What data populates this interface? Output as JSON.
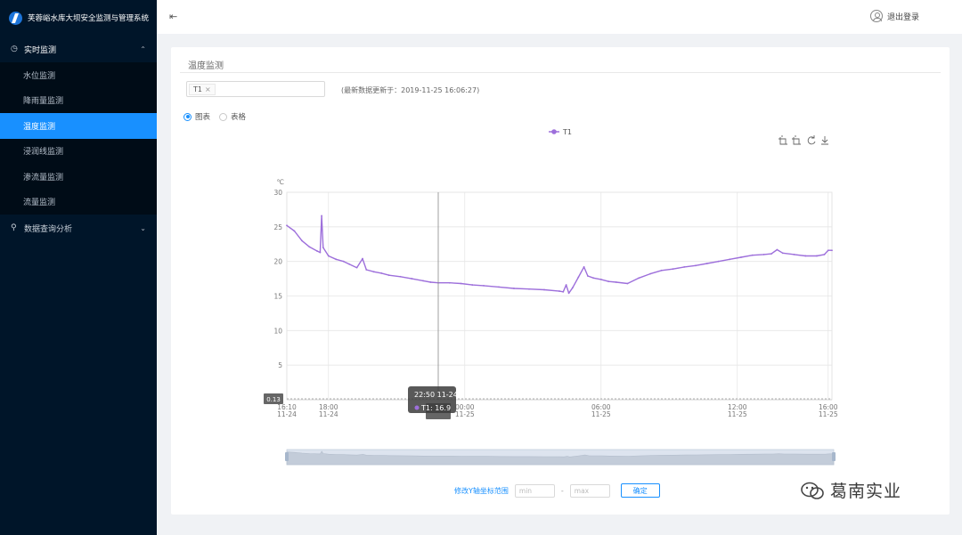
{
  "app": {
    "title": "芙蓉峪水库大坝安全监测与管理系统"
  },
  "sidebar": {
    "groups": [
      {
        "label": "实时监测",
        "icon": "clock-icon",
        "expanded": true,
        "items": [
          {
            "label": "水位监测",
            "active": false
          },
          {
            "label": "降雨量监测",
            "active": false
          },
          {
            "label": "温度监测",
            "active": true
          },
          {
            "label": "浸润线监测",
            "active": false
          },
          {
            "label": "渗流量监测",
            "active": false
          },
          {
            "label": "流量监测",
            "active": false
          }
        ]
      },
      {
        "label": "数据查询分析",
        "icon": "search-icon",
        "expanded": false,
        "items": []
      }
    ]
  },
  "header": {
    "logout_label": "退出登录"
  },
  "panel": {
    "title": "温度监测",
    "selected_sensors": [
      "T1"
    ],
    "update_text": "(最新数据更新于：2019-11-25 16:06:27)",
    "view_options": [
      {
        "label": "图表",
        "checked": true
      },
      {
        "label": "表格",
        "checked": false
      }
    ]
  },
  "chart_data": {
    "type": "line",
    "title": "",
    "ylabel": "℃",
    "xlabel": "",
    "ylim": [
      0,
      30
    ],
    "yticks": [
      0,
      5,
      10,
      15,
      20,
      25,
      30
    ],
    "x_range_minutes": [
      0,
      1440
    ],
    "x_ticks": [
      {
        "t": 0,
        "line1": "16:10",
        "line2": "11-24"
      },
      {
        "t": 110,
        "line1": "18:00",
        "line2": "11-24"
      },
      {
        "t": 470,
        "line1": "00:00",
        "line2": "11-25"
      },
      {
        "t": 830,
        "line1": "06:00",
        "line2": "11-25"
      },
      {
        "t": 1190,
        "line1": "12:00",
        "line2": "11-25"
      },
      {
        "t": 1430,
        "line1": "16:00",
        "line2": "11-25"
      }
    ],
    "legend": [
      "T1"
    ],
    "legend_position": "top-center",
    "series": [
      {
        "name": "T1",
        "color": "#9d6fdb",
        "points": [
          [
            0,
            25.2
          ],
          [
            20,
            24.4
          ],
          [
            40,
            23.0
          ],
          [
            60,
            22.1
          ],
          [
            80,
            21.5
          ],
          [
            88,
            21.3
          ],
          [
            92,
            26.6
          ],
          [
            96,
            22.0
          ],
          [
            110,
            20.8
          ],
          [
            130,
            20.3
          ],
          [
            150,
            20.0
          ],
          [
            165,
            19.6
          ],
          [
            185,
            19.1
          ],
          [
            200,
            20.4
          ],
          [
            210,
            18.8
          ],
          [
            230,
            18.5
          ],
          [
            250,
            18.3
          ],
          [
            270,
            18.0
          ],
          [
            300,
            17.8
          ],
          [
            330,
            17.5
          ],
          [
            360,
            17.2
          ],
          [
            380,
            17.0
          ],
          [
            400,
            16.9
          ],
          [
            430,
            16.9
          ],
          [
            460,
            16.8
          ],
          [
            490,
            16.6
          ],
          [
            520,
            16.5
          ],
          [
            560,
            16.3
          ],
          [
            600,
            16.1
          ],
          [
            640,
            16.0
          ],
          [
            680,
            15.9
          ],
          [
            720,
            15.7
          ],
          [
            730,
            15.6
          ],
          [
            738,
            16.6
          ],
          [
            745,
            15.4
          ],
          [
            755,
            16.2
          ],
          [
            770,
            17.7
          ],
          [
            785,
            19.2
          ],
          [
            795,
            17.9
          ],
          [
            810,
            17.6
          ],
          [
            830,
            17.4
          ],
          [
            850,
            17.1
          ],
          [
            870,
            17.0
          ],
          [
            900,
            16.8
          ],
          [
            930,
            17.6
          ],
          [
            960,
            18.2
          ],
          [
            990,
            18.7
          ],
          [
            1020,
            18.9
          ],
          [
            1050,
            19.2
          ],
          [
            1080,
            19.4
          ],
          [
            1110,
            19.7
          ],
          [
            1140,
            20.0
          ],
          [
            1170,
            20.3
          ],
          [
            1200,
            20.6
          ],
          [
            1230,
            20.9
          ],
          [
            1260,
            21.0
          ],
          [
            1280,
            21.1
          ],
          [
            1295,
            21.7
          ],
          [
            1310,
            21.2
          ],
          [
            1340,
            21.0
          ],
          [
            1370,
            20.8
          ],
          [
            1400,
            20.8
          ],
          [
            1420,
            21.0
          ],
          [
            1430,
            21.6
          ],
          [
            1440,
            21.6
          ]
        ]
      }
    ],
    "y_pointer_label": "0.13",
    "tooltip": {
      "time": "22:50 11-24",
      "series": "T1",
      "value": 16.9,
      "t": 400
    }
  },
  "yrange_form": {
    "label": "修改Y轴坐标范围",
    "min_placeholder": "min",
    "max_placeholder": "max",
    "separator": "-",
    "confirm_label": "确定"
  },
  "watermark": {
    "text": "葛南实业"
  }
}
